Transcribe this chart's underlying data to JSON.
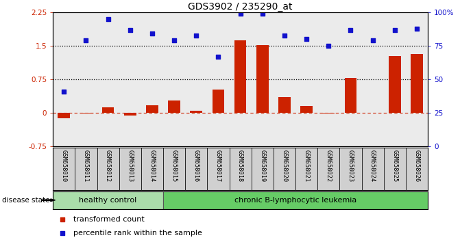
{
  "title": "GDS3902 / 235290_at",
  "samples": [
    "GSM658010",
    "GSM658011",
    "GSM658012",
    "GSM658013",
    "GSM658014",
    "GSM658015",
    "GSM658016",
    "GSM658017",
    "GSM658018",
    "GSM658019",
    "GSM658020",
    "GSM658021",
    "GSM658022",
    "GSM658023",
    "GSM658024",
    "GSM658025",
    "GSM658026"
  ],
  "bar_values": [
    -0.12,
    -0.02,
    0.12,
    -0.06,
    0.17,
    0.27,
    0.05,
    0.52,
    1.62,
    1.52,
    0.35,
    0.15,
    -0.02,
    0.78,
    0.0,
    1.27,
    1.32
  ],
  "dot_values_left": [
    0.48,
    1.62,
    2.1,
    1.85,
    1.77,
    1.62,
    1.73,
    1.25,
    2.22,
    2.22,
    1.73,
    1.65,
    1.5,
    1.85,
    1.62,
    1.85,
    1.88
  ],
  "bar_color": "#cc2200",
  "dot_color": "#1111cc",
  "ylim_left": [
    -0.75,
    2.25
  ],
  "ylim_right": [
    0,
    100
  ],
  "yticks_left": [
    -0.75,
    0,
    0.75,
    1.5,
    2.25
  ],
  "yticks_right": [
    0,
    25,
    50,
    75,
    100
  ],
  "hlines": [
    0.75,
    1.5
  ],
  "background_color": "#ffffff",
  "plot_bg_color": "#ebebeb",
  "healthy_label": "healthy control",
  "leukemia_label": "chronic B-lymphocytic leukemia",
  "healthy_count": 5,
  "disease_label": "disease state",
  "legend_bar_label": "transformed count",
  "legend_dot_label": "percentile rank within the sample",
  "healthy_color": "#aaddaa",
  "leukemia_color": "#66cc66",
  "ticklabel_bg_color": "#d0d0d0"
}
